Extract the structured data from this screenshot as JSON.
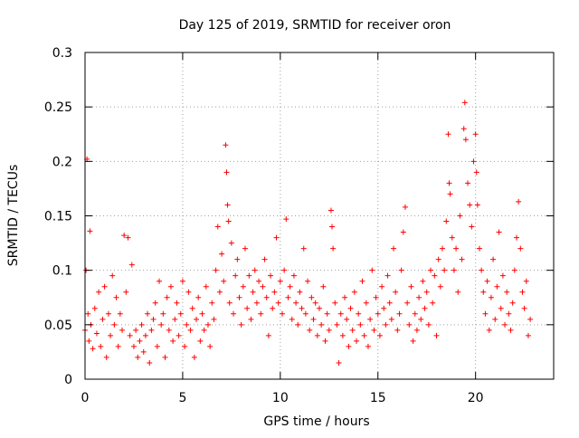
{
  "chart_data": {
    "type": "scatter",
    "title": "Day 125 of 2019, SRMTID for receiver oron",
    "xlabel": "GPS time / hours",
    "ylabel": "SRMTID / TECUs",
    "xlim": [
      0,
      24
    ],
    "ylim": [
      0,
      0.3
    ],
    "x_ticks": [
      0,
      5,
      10,
      15,
      20
    ],
    "x_tick_labels": [
      "0",
      "5",
      "10",
      "15",
      "20"
    ],
    "y_ticks": [
      0,
      0.05,
      0.1,
      0.15,
      0.2,
      0.25,
      0.3
    ],
    "y_tick_labels": [
      "0",
      "0.05",
      "0.1",
      "0.15",
      "0.2",
      "0.25",
      "0.3"
    ],
    "grid": true,
    "marker": "+",
    "color": "#ff0000",
    "series": [
      {
        "name": "SRMTID",
        "points": [
          [
            0.0,
            0.045
          ],
          [
            0.05,
            0.1
          ],
          [
            0.1,
            0.202
          ],
          [
            0.15,
            0.06
          ],
          [
            0.2,
            0.035
          ],
          [
            0.25,
            0.136
          ],
          [
            0.3,
            0.05
          ],
          [
            0.4,
            0.028
          ],
          [
            0.5,
            0.065
          ],
          [
            0.6,
            0.042
          ],
          [
            0.7,
            0.08
          ],
          [
            0.8,
            0.03
          ],
          [
            0.9,
            0.055
          ],
          [
            1.0,
            0.085
          ],
          [
            1.1,
            0.02
          ],
          [
            1.2,
            0.06
          ],
          [
            1.3,
            0.04
          ],
          [
            1.4,
            0.095
          ],
          [
            1.5,
            0.05
          ],
          [
            1.6,
            0.075
          ],
          [
            1.7,
            0.03
          ],
          [
            1.8,
            0.06
          ],
          [
            1.9,
            0.045
          ],
          [
            2.0,
            0.132
          ],
          [
            2.1,
            0.08
          ],
          [
            2.2,
            0.13
          ],
          [
            2.3,
            0.04
          ],
          [
            2.4,
            0.105
          ],
          [
            2.5,
            0.03
          ],
          [
            2.6,
            0.045
          ],
          [
            2.7,
            0.02
          ],
          [
            2.8,
            0.035
          ],
          [
            2.9,
            0.05
          ],
          [
            3.0,
            0.025
          ],
          [
            3.1,
            0.04
          ],
          [
            3.2,
            0.06
          ],
          [
            3.3,
            0.015
          ],
          [
            3.4,
            0.045
          ],
          [
            3.5,
            0.055
          ],
          [
            3.6,
            0.07
          ],
          [
            3.7,
            0.03
          ],
          [
            3.8,
            0.09
          ],
          [
            3.9,
            0.05
          ],
          [
            4.0,
            0.06
          ],
          [
            4.1,
            0.02
          ],
          [
            4.2,
            0.075
          ],
          [
            4.3,
            0.045
          ],
          [
            4.4,
            0.085
          ],
          [
            4.5,
            0.035
          ],
          [
            4.6,
            0.055
          ],
          [
            4.7,
            0.07
          ],
          [
            4.8,
            0.04
          ],
          [
            4.9,
            0.06
          ],
          [
            5.0,
            0.09
          ],
          [
            5.1,
            0.03
          ],
          [
            5.2,
            0.05
          ],
          [
            5.3,
            0.08
          ],
          [
            5.4,
            0.045
          ],
          [
            5.5,
            0.065
          ],
          [
            5.6,
            0.02
          ],
          [
            5.7,
            0.055
          ],
          [
            5.8,
            0.075
          ],
          [
            5.9,
            0.035
          ],
          [
            6.0,
            0.06
          ],
          [
            6.1,
            0.045
          ],
          [
            6.2,
            0.085
          ],
          [
            6.3,
            0.05
          ],
          [
            6.4,
            0.03
          ],
          [
            6.5,
            0.07
          ],
          [
            6.6,
            0.055
          ],
          [
            6.7,
            0.1
          ],
          [
            6.8,
            0.14
          ],
          [
            6.9,
            0.08
          ],
          [
            7.0,
            0.115
          ],
          [
            7.1,
            0.09
          ],
          [
            7.2,
            0.215
          ],
          [
            7.25,
            0.19
          ],
          [
            7.3,
            0.16
          ],
          [
            7.35,
            0.145
          ],
          [
            7.4,
            0.07
          ],
          [
            7.5,
            0.125
          ],
          [
            7.6,
            0.06
          ],
          [
            7.7,
            0.095
          ],
          [
            7.8,
            0.11
          ],
          [
            7.9,
            0.075
          ],
          [
            8.0,
            0.05
          ],
          [
            8.1,
            0.085
          ],
          [
            8.2,
            0.12
          ],
          [
            8.3,
            0.065
          ],
          [
            8.4,
            0.095
          ],
          [
            8.5,
            0.055
          ],
          [
            8.6,
            0.08
          ],
          [
            8.7,
            0.1
          ],
          [
            8.8,
            0.07
          ],
          [
            8.9,
            0.09
          ],
          [
            9.0,
            0.06
          ],
          [
            9.1,
            0.085
          ],
          [
            9.2,
            0.11
          ],
          [
            9.3,
            0.075
          ],
          [
            9.4,
            0.04
          ],
          [
            9.5,
            0.095
          ],
          [
            9.6,
            0.065
          ],
          [
            9.7,
            0.08
          ],
          [
            9.8,
            0.13
          ],
          [
            9.9,
            0.07
          ],
          [
            10.0,
            0.09
          ],
          [
            10.1,
            0.06
          ],
          [
            10.2,
            0.1
          ],
          [
            10.3,
            0.147
          ],
          [
            10.4,
            0.075
          ],
          [
            10.5,
            0.085
          ],
          [
            10.6,
            0.055
          ],
          [
            10.7,
            0.095
          ],
          [
            10.8,
            0.07
          ],
          [
            10.9,
            0.05
          ],
          [
            11.0,
            0.08
          ],
          [
            11.1,
            0.065
          ],
          [
            11.2,
            0.12
          ],
          [
            11.3,
            0.06
          ],
          [
            11.4,
            0.09
          ],
          [
            11.5,
            0.045
          ],
          [
            11.6,
            0.075
          ],
          [
            11.7,
            0.055
          ],
          [
            11.8,
            0.07
          ],
          [
            11.9,
            0.04
          ],
          [
            12.0,
            0.065
          ],
          [
            12.1,
            0.05
          ],
          [
            12.2,
            0.085
          ],
          [
            12.3,
            0.035
          ],
          [
            12.4,
            0.06
          ],
          [
            12.5,
            0.045
          ],
          [
            12.6,
            0.155
          ],
          [
            12.65,
            0.14
          ],
          [
            12.7,
            0.12
          ],
          [
            12.8,
            0.07
          ],
          [
            12.9,
            0.05
          ],
          [
            13.0,
            0.015
          ],
          [
            13.1,
            0.06
          ],
          [
            13.2,
            0.04
          ],
          [
            13.3,
            0.075
          ],
          [
            13.4,
            0.055
          ],
          [
            13.5,
            0.03
          ],
          [
            13.6,
            0.065
          ],
          [
            13.7,
            0.045
          ],
          [
            13.8,
            0.08
          ],
          [
            13.9,
            0.035
          ],
          [
            14.0,
            0.06
          ],
          [
            14.1,
            0.05
          ],
          [
            14.2,
            0.09
          ],
          [
            14.3,
            0.04
          ],
          [
            14.4,
            0.07
          ],
          [
            14.5,
            0.03
          ],
          [
            14.6,
            0.055
          ],
          [
            14.7,
            0.1
          ],
          [
            14.8,
            0.045
          ],
          [
            14.9,
            0.075
          ],
          [
            15.0,
            0.06
          ],
          [
            15.1,
            0.04
          ],
          [
            15.2,
            0.085
          ],
          [
            15.3,
            0.065
          ],
          [
            15.4,
            0.05
          ],
          [
            15.5,
            0.095
          ],
          [
            15.6,
            0.07
          ],
          [
            15.7,
            0.055
          ],
          [
            15.8,
            0.12
          ],
          [
            15.9,
            0.08
          ],
          [
            16.0,
            0.045
          ],
          [
            16.1,
            0.06
          ],
          [
            16.2,
            0.1
          ],
          [
            16.3,
            0.135
          ],
          [
            16.4,
            0.158
          ],
          [
            16.5,
            0.07
          ],
          [
            16.6,
            0.05
          ],
          [
            16.7,
            0.085
          ],
          [
            16.8,
            0.035
          ],
          [
            16.9,
            0.06
          ],
          [
            17.0,
            0.045
          ],
          [
            17.1,
            0.075
          ],
          [
            17.2,
            0.055
          ],
          [
            17.3,
            0.09
          ],
          [
            17.4,
            0.065
          ],
          [
            17.5,
            0.08
          ],
          [
            17.6,
            0.05
          ],
          [
            17.7,
            0.1
          ],
          [
            17.8,
            0.07
          ],
          [
            17.9,
            0.095
          ],
          [
            18.0,
            0.04
          ],
          [
            18.1,
            0.11
          ],
          [
            18.2,
            0.085
          ],
          [
            18.3,
            0.12
          ],
          [
            18.4,
            0.1
          ],
          [
            18.5,
            0.145
          ],
          [
            18.6,
            0.225
          ],
          [
            18.65,
            0.18
          ],
          [
            18.7,
            0.17
          ],
          [
            18.8,
            0.13
          ],
          [
            18.9,
            0.1
          ],
          [
            19.0,
            0.12
          ],
          [
            19.1,
            0.08
          ],
          [
            19.2,
            0.15
          ],
          [
            19.3,
            0.11
          ],
          [
            19.4,
            0.23
          ],
          [
            19.45,
            0.254
          ],
          [
            19.5,
            0.22
          ],
          [
            19.6,
            0.18
          ],
          [
            19.7,
            0.16
          ],
          [
            19.8,
            0.14
          ],
          [
            19.9,
            0.2
          ],
          [
            20.0,
            0.225
          ],
          [
            20.05,
            0.19
          ],
          [
            20.1,
            0.16
          ],
          [
            20.2,
            0.12
          ],
          [
            20.3,
            0.1
          ],
          [
            20.4,
            0.08
          ],
          [
            20.5,
            0.06
          ],
          [
            20.6,
            0.09
          ],
          [
            20.7,
            0.045
          ],
          [
            20.8,
            0.075
          ],
          [
            20.9,
            0.11
          ],
          [
            21.0,
            0.055
          ],
          [
            21.1,
            0.085
          ],
          [
            21.2,
            0.135
          ],
          [
            21.3,
            0.065
          ],
          [
            21.4,
            0.095
          ],
          [
            21.5,
            0.05
          ],
          [
            21.6,
            0.08
          ],
          [
            21.7,
            0.06
          ],
          [
            21.8,
            0.045
          ],
          [
            21.9,
            0.07
          ],
          [
            22.0,
            0.1
          ],
          [
            22.1,
            0.13
          ],
          [
            22.2,
            0.163
          ],
          [
            22.3,
            0.12
          ],
          [
            22.4,
            0.08
          ],
          [
            22.5,
            0.065
          ],
          [
            22.6,
            0.09
          ],
          [
            22.7,
            0.04
          ],
          [
            22.8,
            0.055
          ]
        ]
      }
    ]
  }
}
